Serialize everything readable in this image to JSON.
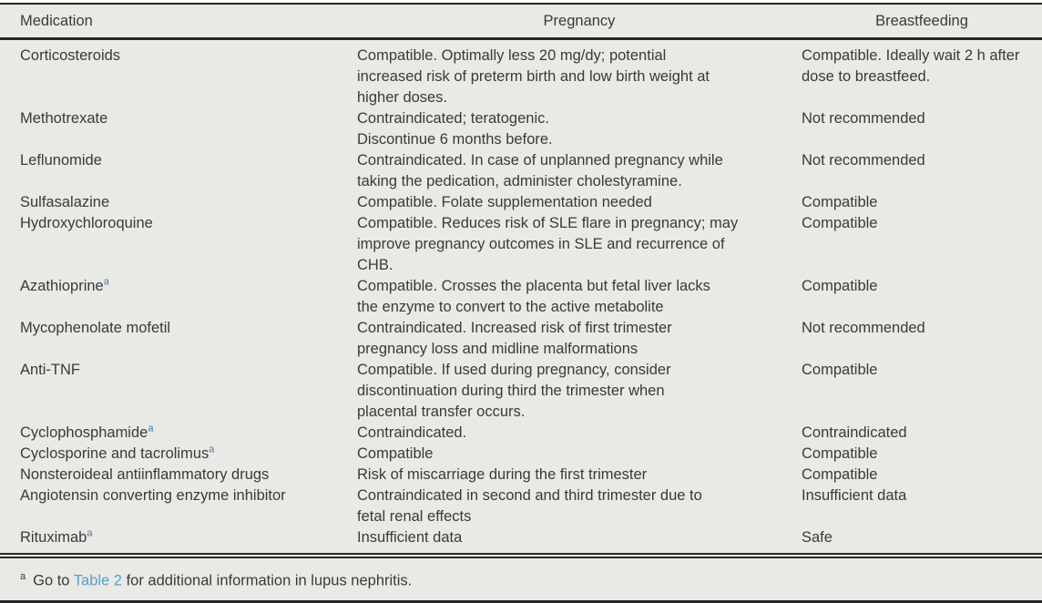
{
  "colors": {
    "background": "#e9e9e6",
    "text": "#3a3a3a",
    "border": "#262626",
    "link": "#5b9fc6",
    "superscript": "#3f7ea6"
  },
  "table": {
    "columns": [
      "Medication",
      "Pregnancy",
      "Breastfeeding"
    ],
    "rows": [
      {
        "medication": "Corticosteroids",
        "sup": "",
        "pregnancy": "Compatible. Optimally less 20 mg/dy; potential\nincreased risk of preterm birth and low birth weight at\nhigher doses.",
        "breastfeeding": "Compatible. Ideally wait 2 h after\ndose to breastfeed."
      },
      {
        "medication": "Methotrexate",
        "sup": "",
        "pregnancy": "Contraindicated; teratogenic.\nDiscontinue 6 months before.",
        "breastfeeding": "Not recommended"
      },
      {
        "medication": "Leflunomide",
        "sup": "",
        "pregnancy": "Contraindicated. In case of unplanned pregnancy while\ntaking the pedication, administer cholestyramine.",
        "breastfeeding": "Not recommended"
      },
      {
        "medication": "Sulfasalazine",
        "sup": "",
        "pregnancy": "Compatible. Folate supplementation needed",
        "breastfeeding": "Compatible"
      },
      {
        "medication": "Hydroxychloroquine",
        "sup": "",
        "pregnancy": "Compatible. Reduces risk of SLE flare in pregnancy; may\nimprove pregnancy outcomes in SLE and recurrence of\nCHB.",
        "breastfeeding": "Compatible"
      },
      {
        "medication": "Azathioprine",
        "sup": "a",
        "pregnancy": "Compatible. Crosses the placenta but fetal liver lacks\nthe enzyme to convert to the active metabolite",
        "breastfeeding": "Compatible"
      },
      {
        "medication": "Mycophenolate mofetil",
        "sup": "",
        "pregnancy": "Contraindicated. Increased risk of first trimester\npregnancy loss and midline malformations",
        "breastfeeding": "Not recommended"
      },
      {
        "medication": "Anti-TNF",
        "sup": "",
        "pregnancy": "Compatible. If used during pregnancy, consider\ndiscontinuation during third the trimester when\nplacental transfer occurs.",
        "breastfeeding": "Compatible"
      },
      {
        "medication": "Cyclophosphamide",
        "sup": "a",
        "pregnancy": "Contraindicated.",
        "breastfeeding": "Contraindicated"
      },
      {
        "medication": "Cyclosporine and tacrolimus",
        "sup": "a",
        "pregnancy": "Compatible",
        "breastfeeding": "Compatible"
      },
      {
        "medication": "Nonsteroideal antiinflammatory drugs",
        "sup": "",
        "pregnancy": "Risk of miscarriage during the first trimester",
        "breastfeeding": "Compatible"
      },
      {
        "medication": "Angiotensin converting enzyme inhibitor",
        "sup": "",
        "pregnancy": "Contraindicated in second and third trimester due to\nfetal renal effects",
        "breastfeeding": "Insufficient data"
      },
      {
        "medication": "Rituximab",
        "sup": "a",
        "pregnancy": "Insufficient data",
        "breastfeeding": "Safe"
      }
    ],
    "footnote": {
      "marker": "a",
      "prefix": "Go to ",
      "link": "Table 2",
      "suffix": " for additional information in lupus nephritis."
    }
  }
}
